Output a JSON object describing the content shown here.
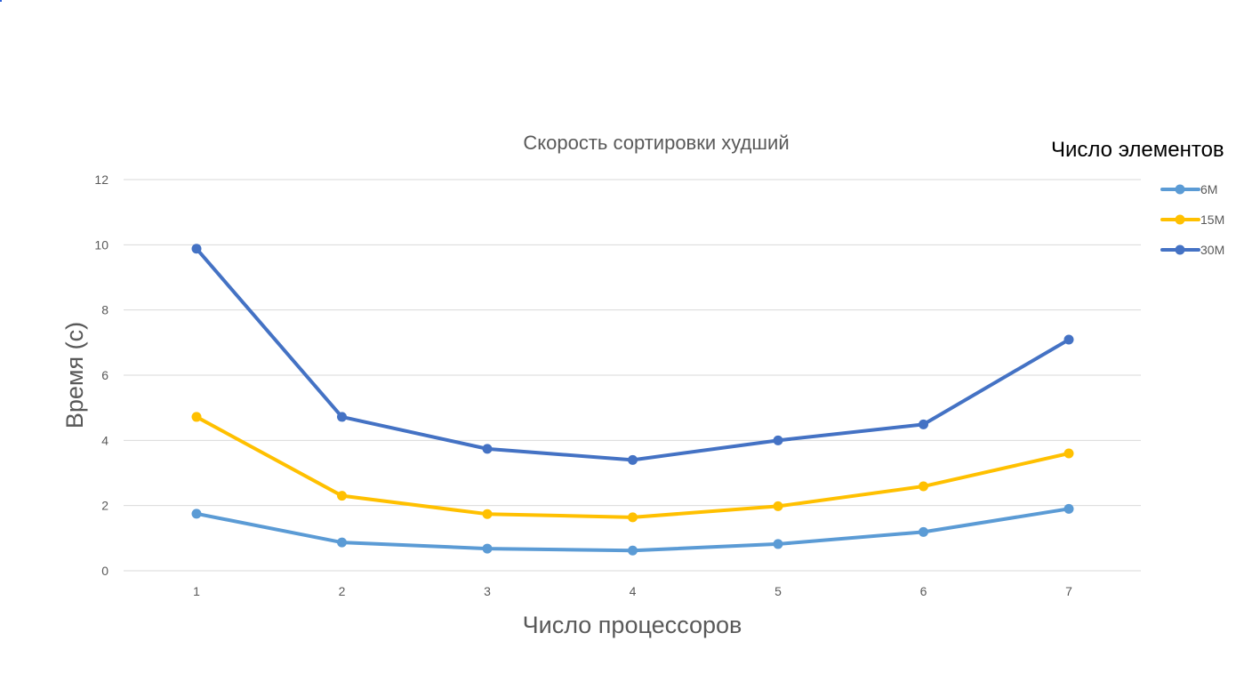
{
  "chart_data": {
    "type": "line",
    "title": "Скорость сортировки худший",
    "xlabel": "Число процессоров",
    "ylabel": "Время (с)",
    "legend_title": "Число элементов",
    "legend_position": "right",
    "grid": true,
    "ylim": [
      0,
      12
    ],
    "yticks": [
      "0",
      "2",
      "4",
      "6",
      "8",
      "10",
      "12"
    ],
    "categories": [
      "1",
      "2",
      "3",
      "4",
      "5",
      "6",
      "7"
    ],
    "series": [
      {
        "name": "6M",
        "color": "#5b9bd5",
        "values": [
          1.75,
          0.87,
          0.68,
          0.62,
          0.82,
          1.19,
          1.9
        ]
      },
      {
        "name": "15M",
        "color": "#ffc000",
        "values": [
          4.72,
          2.3,
          1.74,
          1.64,
          1.98,
          2.59,
          3.6
        ]
      },
      {
        "name": "30M",
        "color": "#4472c4",
        "values": [
          9.88,
          4.72,
          3.74,
          3.4,
          4.0,
          4.49,
          7.09
        ]
      }
    ]
  }
}
